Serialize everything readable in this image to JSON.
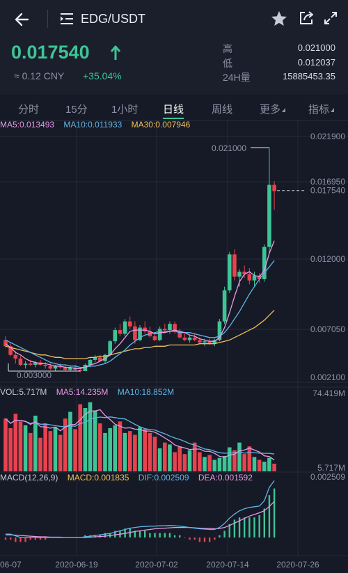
{
  "header": {
    "pair": "EDG/USDT"
  },
  "quote": {
    "last_price": "0.017540",
    "cny": "≈ 0.12 CNY",
    "change": "+35.04%",
    "high_label": "高",
    "high": "0.021000",
    "low_label": "低",
    "low": "0.012037",
    "vol_label": "24H量",
    "vol": "15885453.35"
  },
  "tabs": [
    {
      "label": "分时"
    },
    {
      "label": "15分"
    },
    {
      "label": "1小时"
    },
    {
      "label": "日线"
    },
    {
      "label": "周线"
    },
    {
      "label": "更多"
    },
    {
      "label": "指标"
    }
  ],
  "active_tab": 3,
  "ma_legend": {
    "ma5": "MA5:0.013493",
    "ma10": "MA10:0.011933",
    "ma30": "MA30:0.007946"
  },
  "vol_legend": {
    "vol": "VOL:5.717M",
    "ma5": "MA5:14.235M",
    "ma10": "MA10:18.852M"
  },
  "macd_legend": {
    "params": "MACD(12,26,9)",
    "macd": "MACD:0.001835",
    "dif": "DIF:0.002509",
    "dea": "DEA:0.001592"
  },
  "colors": {
    "up": "#3ec496",
    "down": "#e8424f",
    "ma5": "#e79ae6",
    "ma10": "#5fb6e6",
    "ma30": "#f0c05a"
  },
  "chart_data": {
    "type": "candlestick",
    "price_axis": [
      "0.021900",
      "0.016950",
      "0.012000",
      "0.007050",
      "0.002100"
    ],
    "price_ylim": [
      0.0021,
      0.0219
    ],
    "current_price_label": "0.017540",
    "max_marker": "0.021000",
    "min_marker": "0.003000",
    "vol_axis": [
      "74.419M",
      "5.717M"
    ],
    "macd_axis": [
      "0.002509"
    ],
    "x_labels": [
      "06-07",
      "2020-06-19",
      "2020-07-02",
      "2020-07-14",
      "2020-07-26"
    ],
    "candles": [
      [
        0.0055,
        0.0058,
        0.0049,
        0.005
      ],
      [
        0.005,
        0.0053,
        0.0042,
        0.0043
      ],
      [
        0.0043,
        0.0046,
        0.0036,
        0.004
      ],
      [
        0.004,
        0.0042,
        0.0034,
        0.0035
      ],
      [
        0.0035,
        0.0038,
        0.0032,
        0.0036
      ],
      [
        0.0036,
        0.0039,
        0.0034,
        0.0035
      ],
      [
        0.0035,
        0.0038,
        0.0033,
        0.0037
      ],
      [
        0.0037,
        0.0039,
        0.0034,
        0.0035
      ],
      [
        0.0035,
        0.0037,
        0.0032,
        0.0034
      ],
      [
        0.0034,
        0.0036,
        0.0031,
        0.0032
      ],
      [
        0.0032,
        0.0035,
        0.003,
        0.0034
      ],
      [
        0.0034,
        0.0036,
        0.0032,
        0.0033
      ],
      [
        0.0033,
        0.0035,
        0.003,
        0.0031
      ],
      [
        0.0031,
        0.0034,
        0.003,
        0.0033
      ],
      [
        0.0033,
        0.0035,
        0.003,
        0.0031
      ],
      [
        0.0031,
        0.0033,
        0.0029,
        0.003
      ],
      [
        0.003,
        0.0036,
        0.003,
        0.0035
      ],
      [
        0.0035,
        0.004,
        0.0033,
        0.0039
      ],
      [
        0.0039,
        0.0043,
        0.0037,
        0.0041
      ],
      [
        0.0041,
        0.0043,
        0.0037,
        0.0038
      ],
      [
        0.0038,
        0.0044,
        0.0036,
        0.0043
      ],
      [
        0.0043,
        0.0055,
        0.0042,
        0.0054
      ],
      [
        0.0054,
        0.0065,
        0.0052,
        0.0063
      ],
      [
        0.0063,
        0.0068,
        0.0058,
        0.006
      ],
      [
        0.006,
        0.0072,
        0.0058,
        0.007
      ],
      [
        0.007,
        0.0074,
        0.0064,
        0.0066
      ],
      [
        0.0066,
        0.007,
        0.0052,
        0.0055
      ],
      [
        0.0055,
        0.0067,
        0.0054,
        0.0065
      ],
      [
        0.0065,
        0.007,
        0.006,
        0.0062
      ],
      [
        0.0062,
        0.0066,
        0.0057,
        0.0058
      ],
      [
        0.0058,
        0.006,
        0.0054,
        0.0055
      ],
      [
        0.0055,
        0.0066,
        0.0054,
        0.0064
      ],
      [
        0.0064,
        0.0068,
        0.0061,
        0.0063
      ],
      [
        0.0063,
        0.007,
        0.006,
        0.0068
      ],
      [
        0.0068,
        0.007,
        0.006,
        0.0062
      ],
      [
        0.0062,
        0.0064,
        0.0056,
        0.0057
      ],
      [
        0.0057,
        0.006,
        0.0054,
        0.0055
      ],
      [
        0.0055,
        0.0059,
        0.0053,
        0.0057
      ],
      [
        0.0057,
        0.006,
        0.0054,
        0.0055
      ],
      [
        0.0055,
        0.0057,
        0.0052,
        0.0053
      ],
      [
        0.0053,
        0.0056,
        0.005,
        0.0054
      ],
      [
        0.0054,
        0.0056,
        0.0051,
        0.0052
      ],
      [
        0.0052,
        0.0056,
        0.005,
        0.0055
      ],
      [
        0.0055,
        0.0072,
        0.0054,
        0.007
      ],
      [
        0.007,
        0.0098,
        0.0068,
        0.0095
      ],
      [
        0.0095,
        0.0126,
        0.0093,
        0.0124
      ],
      [
        0.0124,
        0.0128,
        0.0103,
        0.0106
      ],
      [
        0.0106,
        0.0112,
        0.0098,
        0.011
      ],
      [
        0.011,
        0.0115,
        0.0105,
        0.0108
      ],
      [
        0.0108,
        0.0113,
        0.01,
        0.0103
      ],
      [
        0.0103,
        0.011,
        0.0098,
        0.0107
      ],
      [
        0.0107,
        0.0109,
        0.0101,
        0.0104
      ],
      [
        0.0104,
        0.0132,
        0.0102,
        0.013
      ],
      [
        0.013,
        0.021,
        0.0125,
        0.018
      ],
      [
        0.018,
        0.0183,
        0.016,
        0.0175
      ]
    ],
    "volumes": [
      55,
      45,
      60,
      52,
      48,
      40,
      58,
      35,
      50,
      42,
      46,
      38,
      55,
      62,
      44,
      70,
      66,
      72,
      63,
      50,
      40,
      45,
      48,
      52,
      40,
      42,
      38,
      46,
      44,
      40,
      36,
      24,
      30,
      28,
      20,
      26,
      18,
      22,
      30,
      20,
      15,
      17,
      12,
      14,
      16,
      25,
      22,
      30,
      18,
      26,
      15,
      12,
      10,
      14,
      8
    ],
    "ma5": [
      0.0052,
      0.0049,
      0.0045,
      0.0043,
      0.004,
      0.0038,
      0.0037,
      0.0036,
      0.0036,
      0.0035,
      0.0034,
      0.0034,
      0.0033,
      0.0033,
      0.0032,
      0.0032,
      0.0033,
      0.0035,
      0.0036,
      0.0038,
      0.004,
      0.0043,
      0.0048,
      0.0052,
      0.0057,
      0.0062,
      0.0063,
      0.0063,
      0.0063,
      0.0062,
      0.006,
      0.0061,
      0.0061,
      0.0062,
      0.0063,
      0.0062,
      0.0061,
      0.0059,
      0.0058,
      0.0056,
      0.0055,
      0.0054,
      0.0054,
      0.0057,
      0.0065,
      0.0077,
      0.009,
      0.0102,
      0.0108,
      0.011,
      0.0107,
      0.0106,
      0.0111,
      0.0125,
      0.0135
    ],
    "ma10": [
      0.0055,
      0.0053,
      0.0051,
      0.0049,
      0.0047,
      0.0045,
      0.0043,
      0.0041,
      0.0039,
      0.0037,
      0.0036,
      0.0035,
      0.0035,
      0.0034,
      0.0034,
      0.0033,
      0.0033,
      0.0034,
      0.0034,
      0.0035,
      0.0036,
      0.0038,
      0.0041,
      0.0044,
      0.0047,
      0.0051,
      0.0054,
      0.0057,
      0.0059,
      0.006,
      0.0061,
      0.0062,
      0.0062,
      0.0062,
      0.0062,
      0.0061,
      0.0061,
      0.0061,
      0.006,
      0.0059,
      0.0058,
      0.0057,
      0.0057,
      0.0058,
      0.0061,
      0.0066,
      0.0072,
      0.0078,
      0.0085,
      0.0092,
      0.0098,
      0.0104,
      0.0109,
      0.0114,
      0.0119
    ],
    "ma30": [
      0.005,
      0.0049,
      0.0048,
      0.0047,
      0.0046,
      0.0045,
      0.0044,
      0.0043,
      0.0043,
      0.0042,
      0.0041,
      0.0041,
      0.004,
      0.004,
      0.004,
      0.004,
      0.004,
      0.0041,
      0.0041,
      0.0042,
      0.0042,
      0.0043,
      0.0044,
      0.0045,
      0.0046,
      0.0047,
      0.0048,
      0.0048,
      0.0049,
      0.0049,
      0.005,
      0.005,
      0.005,
      0.0051,
      0.0051,
      0.0051,
      0.0051,
      0.0051,
      0.0051,
      0.0052,
      0.0052,
      0.0052,
      0.0052,
      0.0053,
      0.0054,
      0.0055,
      0.0057,
      0.0059,
      0.0061,
      0.0063,
      0.0065,
      0.0068,
      0.0071,
      0.0075,
      0.0079
    ],
    "macd_hist": [
      -1,
      -1,
      -2,
      -2,
      -2,
      -1,
      -1,
      -1,
      -1,
      0,
      0,
      0,
      0,
      0,
      0,
      0,
      1,
      1,
      1,
      1,
      2,
      2,
      3,
      3,
      4,
      4,
      3,
      3,
      3,
      2,
      2,
      2,
      2,
      2,
      1,
      1,
      0,
      -1,
      -1,
      -2,
      -2,
      -2,
      -1,
      1,
      3,
      6,
      8,
      9,
      9,
      9,
      9,
      10,
      13,
      19,
      22
    ],
    "macd_dif": [
      0.1,
      0.1,
      0.05,
      0.0,
      0.0,
      0.0,
      0.0,
      0.0,
      0.0,
      0.0,
      0.0,
      0.0,
      0.0,
      0.0,
      0.0,
      0.0,
      0.02,
      0.04,
      0.06,
      0.08,
      0.1,
      0.12,
      0.16,
      0.2,
      0.24,
      0.28,
      0.3,
      0.32,
      0.33,
      0.34,
      0.34,
      0.35,
      0.35,
      0.36,
      0.35,
      0.34,
      0.32,
      0.3,
      0.28,
      0.26,
      0.25,
      0.24,
      0.24,
      0.3,
      0.42,
      0.58,
      0.7,
      0.8,
      0.86,
      0.9,
      0.92,
      0.94,
      1.1,
      1.5,
      1.7
    ],
    "macd_dea": [
      0.08,
      0.08,
      0.07,
      0.06,
      0.05,
      0.04,
      0.03,
      0.02,
      0.02,
      0.01,
      0.01,
      0.01,
      0.0,
      0.0,
      0.0,
      0.0,
      0.0,
      0.01,
      0.02,
      0.03,
      0.04,
      0.06,
      0.08,
      0.1,
      0.12,
      0.15,
      0.18,
      0.2,
      0.22,
      0.24,
      0.26,
      0.27,
      0.28,
      0.29,
      0.3,
      0.3,
      0.3,
      0.3,
      0.29,
      0.28,
      0.27,
      0.27,
      0.26,
      0.27,
      0.3,
      0.36,
      0.43,
      0.5,
      0.57,
      0.64,
      0.69,
      0.74,
      0.8,
      0.93,
      1.08
    ]
  }
}
